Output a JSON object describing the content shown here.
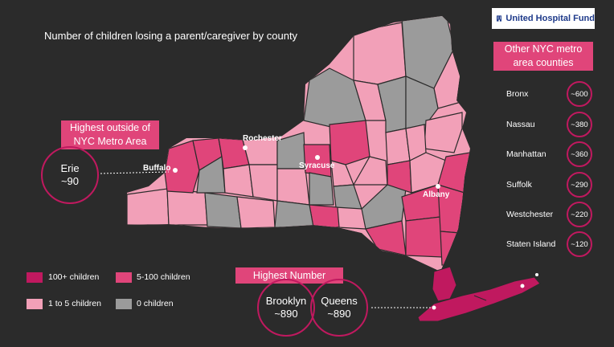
{
  "title": "Number of children losing a parent/caregiver by county",
  "logo": {
    "text": "United Hospital Fund",
    "icon": "hospital-building-icon"
  },
  "colors": {
    "c100": "#c0195f",
    "c5_100": "#e0457a",
    "c1_5": "#f2a0b8",
    "c0": "#9b9b9b",
    "background": "#2b2b2b"
  },
  "highest_outside": {
    "heading": "Highest outside of NYC Metro Area",
    "county": "Erie",
    "value": "~90"
  },
  "other_metro": {
    "heading": "Other NYC metro area counties",
    "items": [
      {
        "name": "Bronx",
        "value": "~600"
      },
      {
        "name": "Nassau",
        "value": "~380"
      },
      {
        "name": "Manhattan",
        "value": "~360"
      },
      {
        "name": "Suffolk",
        "value": "~290"
      },
      {
        "name": "Westchester",
        "value": "~220"
      },
      {
        "name": "Staten Island",
        "value": "~120"
      }
    ]
  },
  "highest_number": {
    "heading": "Highest Number",
    "items": [
      {
        "name": "Brooklyn",
        "value": "~890"
      },
      {
        "name": "Queens",
        "value": "~890"
      }
    ]
  },
  "legend": [
    {
      "label": "100+ children",
      "color": "#c0195f"
    },
    {
      "label": "5-100 children",
      "color": "#e0457a"
    },
    {
      "label": "1 to 5 children",
      "color": "#f2a0b8"
    },
    {
      "label": "0 children",
      "color": "#9b9b9b"
    }
  ],
  "cities": [
    "Rochester",
    "Buffalo",
    "Syracuse",
    "Albany"
  ]
}
